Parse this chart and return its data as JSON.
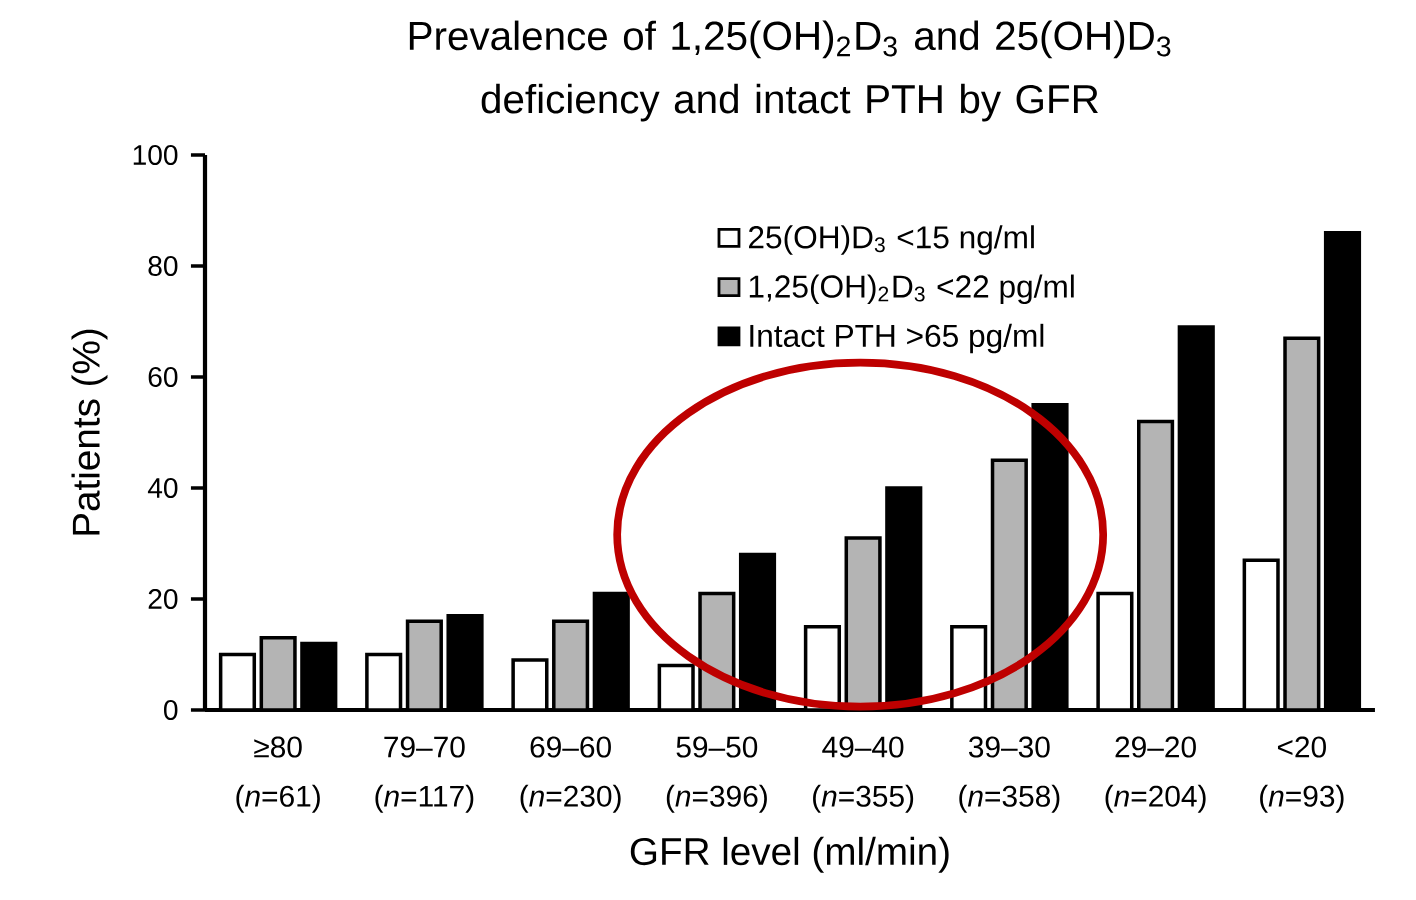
{
  "chart_data": {
    "type": "bar",
    "title": "Prevalence of 1,25(OH)$_{2}$D$_{3}$ and 25(OH)D$_{3}$ deficiency and intact PTH by GFR",
    "xlabel": "GFR level (ml/min)",
    "ylabel": "Patients (%)",
    "categories": [
      "≥80 (*n*=61)",
      "79–70 (*n*=117)",
      "69–60 (*n*=230)",
      "59–50 (*n*=396)",
      "49–40 (*n*=355)",
      "39–30 (*n*=358)",
      "29–20 (*n*=204)",
      "<20 (*n*=93)"
    ],
    "series": [
      {
        "name": "25(OH)D$_{3}$ <15 ng/ml",
        "color": "#ffffff",
        "values": [
          10,
          10,
          9,
          8,
          15,
          15,
          21,
          27
        ]
      },
      {
        "name": "1,25(OH)$_{2}$D$_{3}$ <22 pg/ml",
        "color": "#b4b4b4",
        "values": [
          13,
          16,
          16,
          21,
          31,
          45,
          52,
          67
        ]
      },
      {
        "name": "Intact PTH >65 pg/ml",
        "color": "#000000",
        "values": [
          12,
          17,
          21,
          28,
          40,
          55,
          69,
          86
        ]
      }
    ],
    "ylim": [
      0,
      100
    ],
    "yticks": [
      0,
      20,
      40,
      60,
      80,
      100
    ],
    "legend": "top right"
  }
}
